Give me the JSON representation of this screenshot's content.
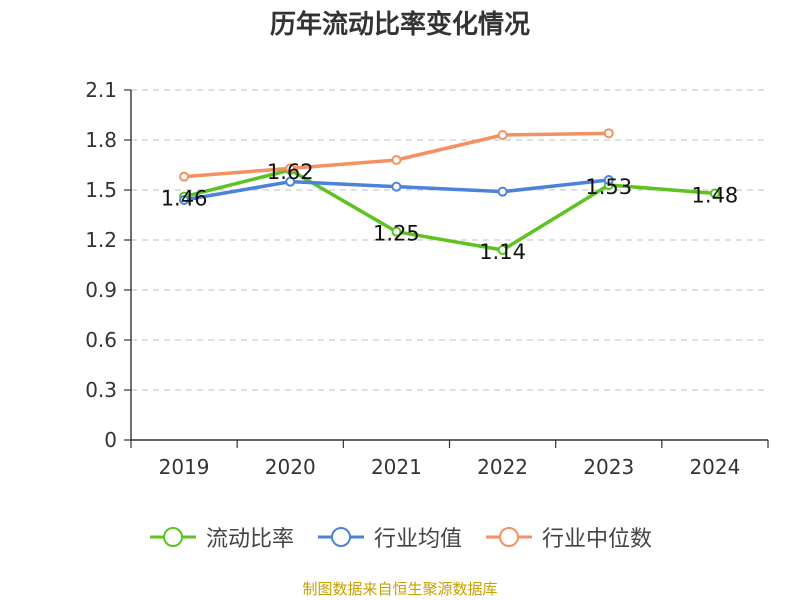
{
  "chart_data": {
    "type": "line",
    "title": "历年流动比率变化情况",
    "categories": [
      "2019",
      "2020",
      "2021",
      "2022",
      "2023",
      "2024"
    ],
    "series": [
      {
        "name": "流动比率",
        "color": "#5ec221",
        "values": [
          1.46,
          1.62,
          1.25,
          1.14,
          1.53,
          1.48
        ],
        "show_labels": true
      },
      {
        "name": "行业均值",
        "color": "#4d82dc",
        "values": [
          1.44,
          1.55,
          1.52,
          1.49,
          1.56,
          null
        ],
        "show_labels": false
      },
      {
        "name": "行业中位数",
        "color": "#f49061",
        "values": [
          1.58,
          1.63,
          1.68,
          1.83,
          1.84,
          null
        ],
        "show_labels": false
      }
    ],
    "y_ticks": [
      "0",
      "0.3",
      "0.6",
      "0.9",
      "1.2",
      "1.5",
      "1.8",
      "2.1"
    ],
    "ylim": [
      0,
      2.1
    ],
    "grid": true,
    "legend_position": "bottom",
    "source": "制图数据来自恒生聚源数据库"
  }
}
